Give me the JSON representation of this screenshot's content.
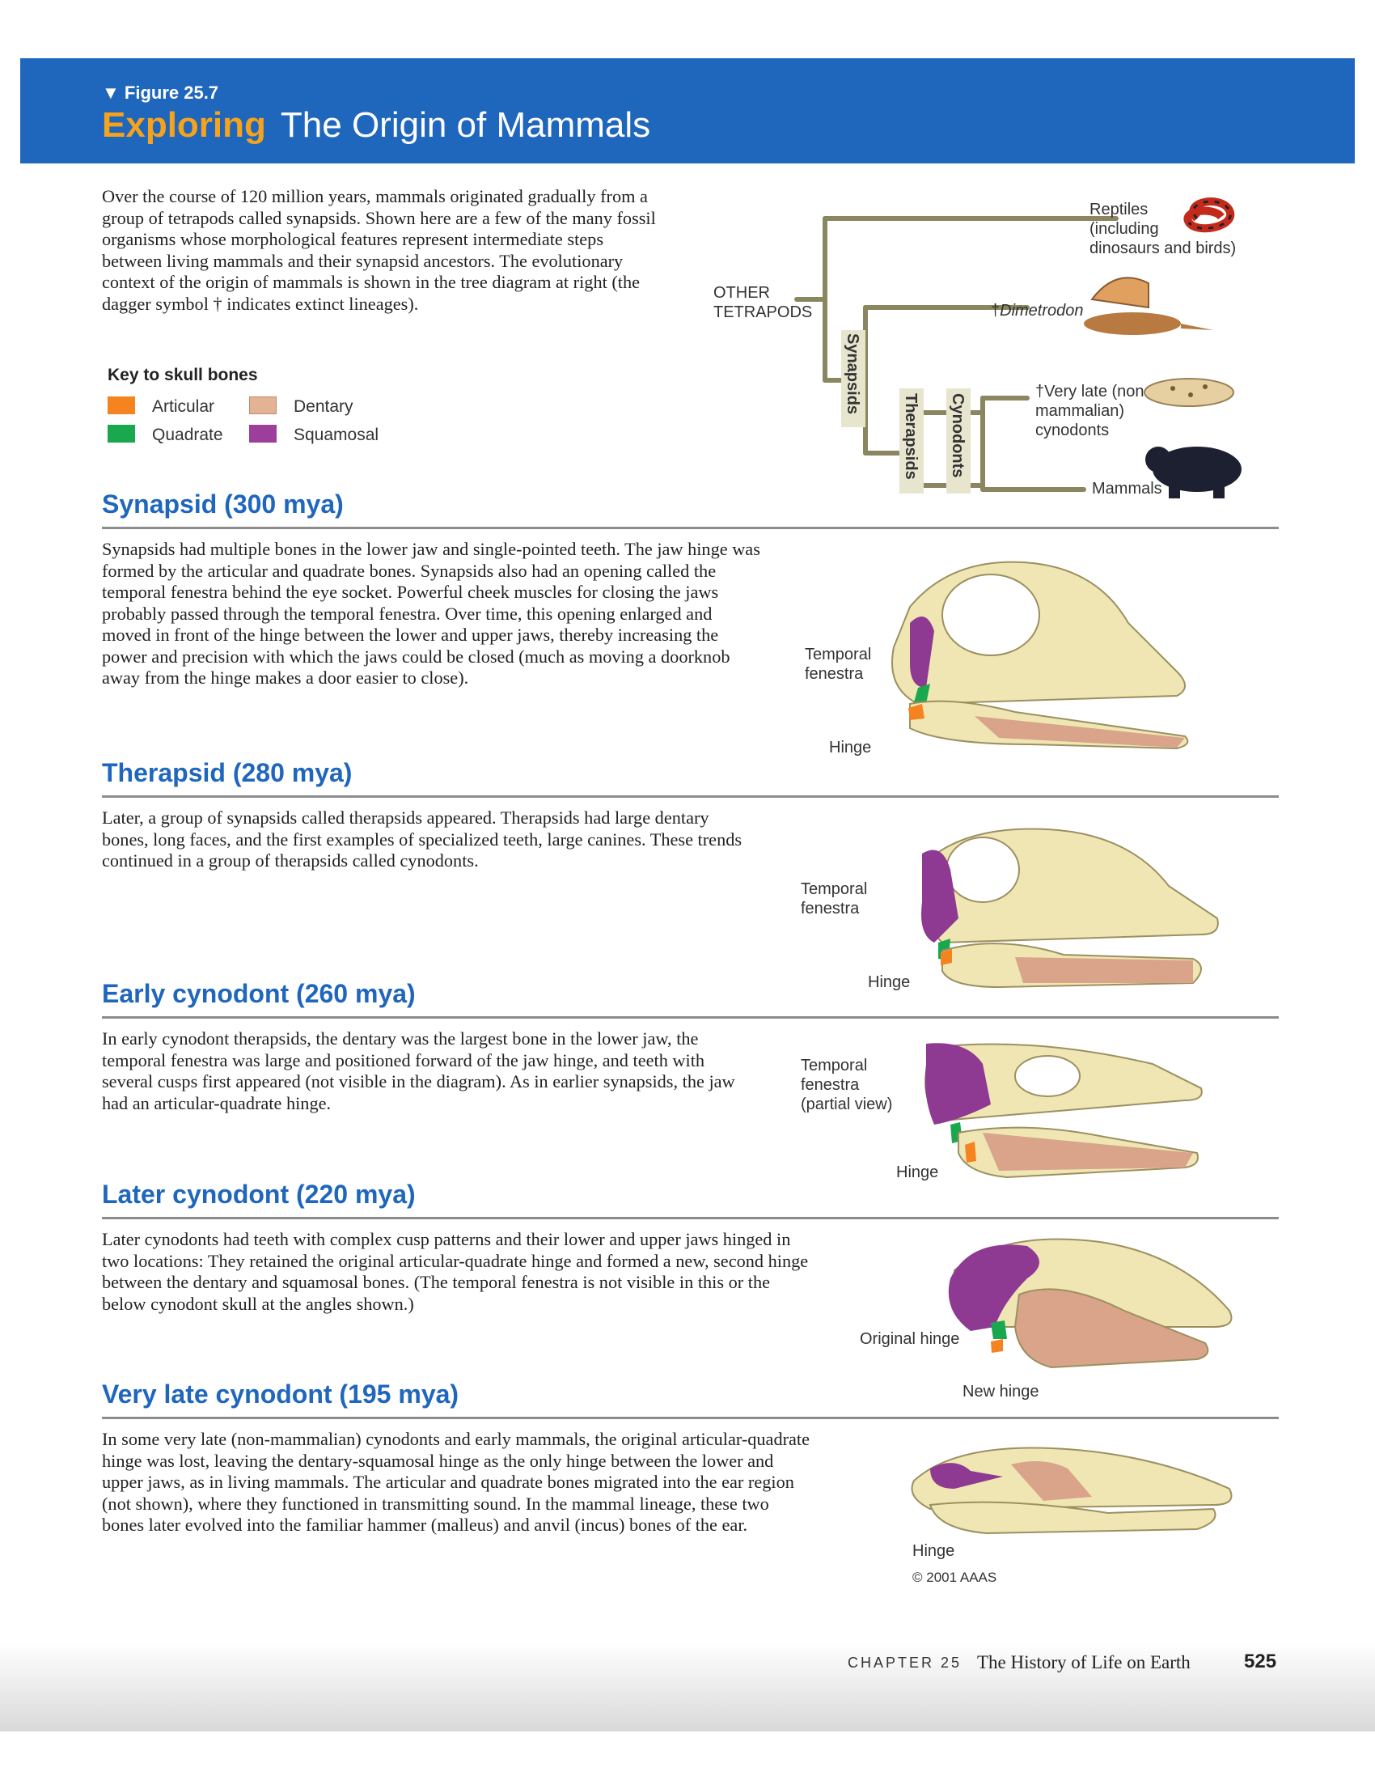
{
  "header": {
    "figure_label": "▼ Figure 25.7",
    "title_highlight": "Exploring",
    "title_rest": "The Origin of Mammals"
  },
  "intro": "Over the course of 120 million years, mammals originated gradually from a group of tetrapods called synapsids. Shown here are a few of the many fossil organisms whose morphological features represent intermediate steps between living mammals and their synapsid ancestors. The evolutionary context of the origin of mammals is shown in the tree diagram at right (the dagger symbol † indicates extinct lineages).",
  "key": {
    "title": "Key to skull bones",
    "items": [
      {
        "label": "Articular",
        "color": "#f5831f"
      },
      {
        "label": "Dentary",
        "color": "#e4b394"
      },
      {
        "label": "Quadrate",
        "color": "#1aa84f"
      },
      {
        "label": "Squamosal",
        "color": "#9b3f9b"
      }
    ]
  },
  "tree": {
    "root": "OTHER\nTETRAPODS",
    "clades": [
      "Synapsids",
      "Therapsids",
      "Cynodonts"
    ],
    "tips": [
      "Reptiles\n(including\ndinosaurs and birds)",
      "Dimetrodon",
      "Very late (non-\nmammalian)\ncynodonts",
      "Mammals"
    ],
    "dagger": "†"
  },
  "sections": [
    {
      "title": "Synapsid (300 mya)",
      "text": "Synapsids had multiple bones in the lower jaw and single-pointed teeth. The jaw hinge was formed by the articular and quadrate bones. Synapsids also had an opening called the temporal fenestra behind the eye socket. Powerful cheek muscles for closing the jaws probably passed through the temporal fenestra. Over time, this opening enlarged and moved in front of the hinge between the lower and upper jaws, thereby increasing the power and precision with which the jaws could be closed (much as moving a doorknob away from the hinge makes a door easier to close).",
      "labels": [
        "Temporal\nfenestra",
        "Hinge"
      ]
    },
    {
      "title": "Therapsid (280 mya)",
      "text": "Later, a group of synapsids called therapsids appeared. Therapsids had large dentary bones, long faces, and the first examples of specialized teeth, large canines. These trends continued in a group of therapsids called cynodonts.",
      "labels": [
        "Temporal\nfenestra",
        "Hinge"
      ]
    },
    {
      "title": "Early cynodont (260 mya)",
      "text": "In early cynodont therapsids, the dentary was the largest bone in the lower jaw, the temporal fenestra was large and positioned forward of the jaw hinge, and teeth with several cusps first appeared (not visible in the diagram). As in earlier synapsids, the jaw had an articular-quadrate hinge.",
      "labels": [
        "Temporal\nfenestra\n(partial view)",
        "Hinge"
      ]
    },
    {
      "title": "Later cynodont (220 mya)",
      "text": "Later cynodonts had teeth with complex cusp patterns and their lower and upper jaws hinged in two locations: They retained the original articular-quadrate hinge and formed a new, second hinge between the dentary and squamosal bones. (The temporal fenestra is not visible in this or the below cynodont skull at the angles shown.)",
      "labels": [
        "Original hinge",
        "New hinge"
      ]
    },
    {
      "title": "Very late cynodont (195 mya)",
      "text": "In some very late (non-mammalian) cynodonts and early mammals, the original articular-quadrate hinge was lost, leaving the dentary-squamosal hinge as the only hinge between the lower and upper jaws, as in living mammals. The articular and quadrate bones migrated into the ear region (not shown), where they functioned in transmitting sound. In the mammal lineage, these two bones later evolved into the familiar hammer (malleus) and anvil (incus) bones of the ear.",
      "labels": [
        "Hinge"
      ],
      "credit": "© 2001 AAAS"
    }
  ],
  "footer": {
    "chapter": "CHAPTER 25",
    "chapter_title": "The History of Life on Earth",
    "page": "525"
  },
  "colors": {
    "banner": "#1f66bd",
    "highlight": "#f5a21c",
    "tree_line": "#8a8660",
    "bone": "#efe6b4",
    "articular": "#f5831f",
    "quadrate": "#1aa84f",
    "dentary": "#d9a48a",
    "squamosal": "#8e3a93"
  }
}
